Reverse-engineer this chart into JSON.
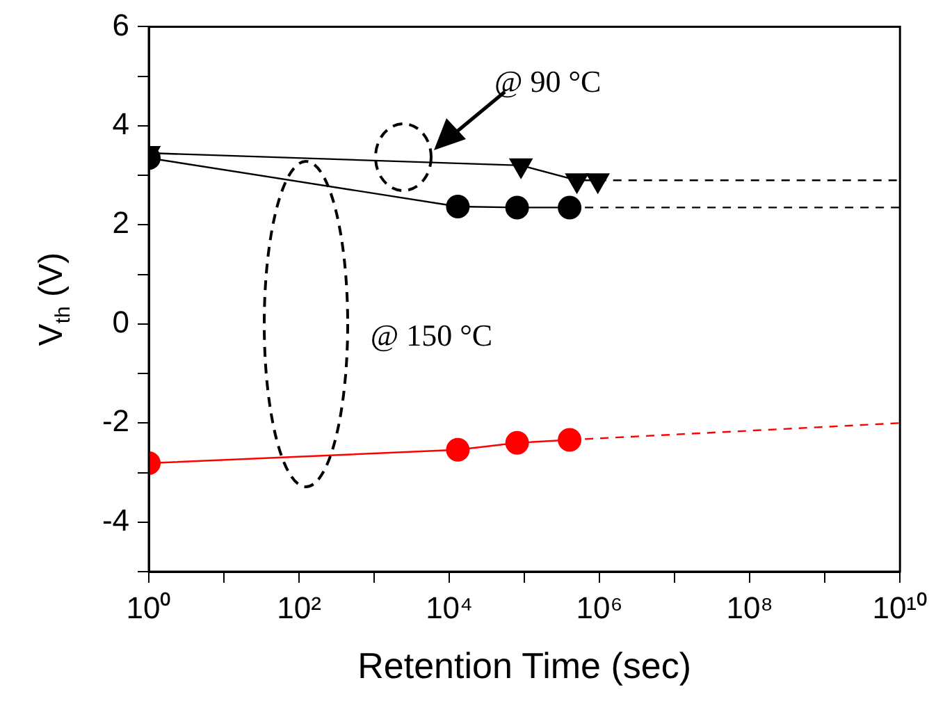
{
  "chart_data": {
    "type": "line",
    "xlabel": "Retention Time (sec)",
    "ylabel": "V$_{th}$ (V)",
    "annotations": [
      "@ 90 °C",
      "@ 150 °C"
    ],
    "log": "x",
    "grid": false,
    "legend": false,
    "xlim": [
      1,
      10000000000
    ],
    "ylim": [
      -5,
      6
    ],
    "xticks": [
      {
        "value": 1,
        "label": "10⁰"
      },
      {
        "value": 10,
        "label": null
      },
      {
        "value": 100,
        "label": "10²"
      },
      {
        "value": 1000,
        "label": null
      },
      {
        "value": 10000,
        "label": "10⁴"
      },
      {
        "value": 100000,
        "label": null
      },
      {
        "value": 1000000,
        "label": "10⁶"
      },
      {
        "value": 10000000,
        "label": null
      },
      {
        "value": 100000000,
        "label": "10⁸"
      },
      {
        "value": 1000000000,
        "label": null
      },
      {
        "value": 10000000000,
        "label": "10¹⁰"
      }
    ],
    "yticks": [
      {
        "value": -5,
        "label": null
      },
      -4,
      {
        "value": -3,
        "label": null
      },
      -2,
      {
        "value": -1,
        "label": null
      },
      0,
      {
        "value": 1,
        "label": null
      },
      2,
      {
        "value": 3,
        "label": null
      },
      4,
      {
        "value": 5,
        "label": null
      },
      6
    ],
    "series": [
      {
        "color": "#000000",
        "marker": "triangle",
        "line_style": "solid",
        "x": [
          1,
          90000,
          500000,
          950000
        ],
        "values": [
          3.45,
          3.2,
          2.9,
          2.9
        ]
      },
      {
        "color": "#000000",
        "marker": "circle",
        "line_style": "solid",
        "x": [
          1,
          13000,
          80000,
          400000
        ],
        "values": [
          3.35,
          2.37,
          2.35,
          2.35
        ]
      },
      {
        "color": "#ff0000",
        "marker": "circle",
        "line_style": "solid",
        "x": [
          1,
          13000,
          80000,
          400000
        ],
        "values": [
          -2.81,
          -2.54,
          -2.4,
          -2.34
        ]
      },
      {
        "color": "#000000",
        "marker": "none",
        "line_style": "dashed",
        "x": [
          950000,
          10000000000
        ],
        "values": [
          2.9,
          2.9
        ]
      },
      {
        "color": "#000000",
        "marker": "none",
        "line_style": "dashed",
        "x": [
          400000,
          10000000000
        ],
        "values": [
          2.35,
          2.35
        ]
      },
      {
        "color": "#ff0000",
        "marker": "none",
        "line_style": "dashed",
        "x": [
          400000,
          10000000000
        ],
        "values": [
          -2.34,
          -2.0
        ]
      }
    ]
  }
}
